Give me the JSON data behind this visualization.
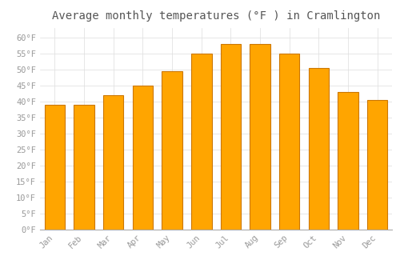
{
  "title": "Average monthly temperatures (°F ) in Cramlington",
  "months": [
    "Jan",
    "Feb",
    "Mar",
    "Apr",
    "May",
    "Jun",
    "Jul",
    "Aug",
    "Sep",
    "Oct",
    "Nov",
    "Dec"
  ],
  "values": [
    39,
    39,
    42,
    45,
    49.5,
    55,
    58,
    58,
    55,
    50.5,
    43,
    40.5
  ],
  "bar_color": "#FFA500",
  "bar_edge_color": "#CC7700",
  "background_color": "#FFFFFF",
  "ylim": [
    0,
    63
  ],
  "yticks": [
    0,
    5,
    10,
    15,
    20,
    25,
    30,
    35,
    40,
    45,
    50,
    55,
    60
  ],
  "title_fontsize": 10,
  "tick_fontsize": 7.5,
  "grid_color": "#DDDDDD",
  "tick_color": "#999999"
}
